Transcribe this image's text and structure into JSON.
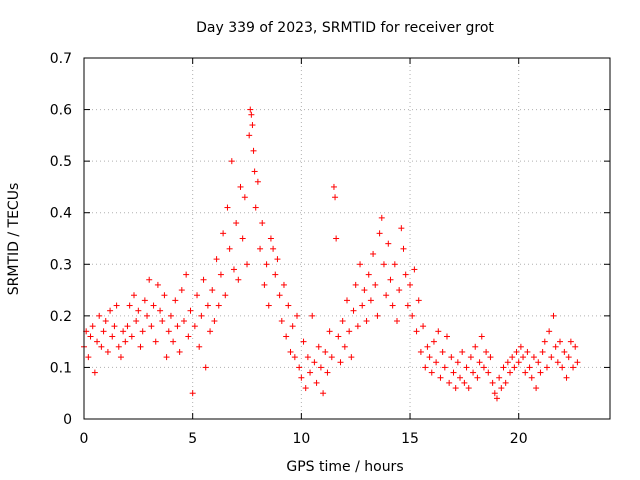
{
  "chart_data": {
    "type": "scatter",
    "title": "Day 339 of 2023, SRMTID for receiver grot",
    "xlabel": "GPS time / hours",
    "ylabel": "SRMTID / TECUs",
    "xlim": [
      0,
      24.2
    ],
    "ylim": [
      0,
      0.7
    ],
    "xticks": [
      0,
      5,
      10,
      15,
      20
    ],
    "yticks": [
      0,
      0.1,
      0.2,
      0.3,
      0.4,
      0.5,
      0.6,
      0.7
    ],
    "grid": true,
    "marker": "+",
    "color": "#ff0000",
    "series": [
      {
        "name": "SRMTID",
        "points": [
          [
            0.0,
            0.14
          ],
          [
            0.1,
            0.17
          ],
          [
            0.2,
            0.12
          ],
          [
            0.3,
            0.16
          ],
          [
            0.4,
            0.18
          ],
          [
            0.5,
            0.09
          ],
          [
            0.6,
            0.15
          ],
          [
            0.7,
            0.2
          ],
          [
            0.8,
            0.14
          ],
          [
            0.9,
            0.17
          ],
          [
            1.0,
            0.19
          ],
          [
            1.1,
            0.13
          ],
          [
            1.2,
            0.21
          ],
          [
            1.3,
            0.16
          ],
          [
            1.4,
            0.18
          ],
          [
            1.5,
            0.22
          ],
          [
            1.6,
            0.14
          ],
          [
            1.7,
            0.12
          ],
          [
            1.8,
            0.17
          ],
          [
            1.9,
            0.15
          ],
          [
            2.0,
            0.18
          ],
          [
            2.1,
            0.22
          ],
          [
            2.2,
            0.16
          ],
          [
            2.3,
            0.24
          ],
          [
            2.4,
            0.19
          ],
          [
            2.5,
            0.21
          ],
          [
            2.6,
            0.14
          ],
          [
            2.7,
            0.17
          ],
          [
            2.8,
            0.23
          ],
          [
            2.9,
            0.2
          ],
          [
            3.0,
            0.27
          ],
          [
            3.1,
            0.18
          ],
          [
            3.2,
            0.22
          ],
          [
            3.3,
            0.15
          ],
          [
            3.4,
            0.26
          ],
          [
            3.5,
            0.21
          ],
          [
            3.6,
            0.19
          ],
          [
            3.7,
            0.24
          ],
          [
            3.8,
            0.12
          ],
          [
            3.9,
            0.17
          ],
          [
            4.0,
            0.2
          ],
          [
            4.1,
            0.15
          ],
          [
            4.2,
            0.23
          ],
          [
            4.3,
            0.18
          ],
          [
            4.4,
            0.13
          ],
          [
            4.5,
            0.25
          ],
          [
            4.6,
            0.19
          ],
          [
            4.7,
            0.28
          ],
          [
            4.8,
            0.16
          ],
          [
            4.9,
            0.21
          ],
          [
            5.0,
            0.05
          ],
          [
            5.1,
            0.18
          ],
          [
            5.2,
            0.24
          ],
          [
            5.3,
            0.14
          ],
          [
            5.4,
            0.2
          ],
          [
            5.5,
            0.27
          ],
          [
            5.6,
            0.1
          ],
          [
            5.7,
            0.22
          ],
          [
            5.8,
            0.17
          ],
          [
            5.9,
            0.25
          ],
          [
            6.0,
            0.19
          ],
          [
            6.1,
            0.31
          ],
          [
            6.2,
            0.22
          ],
          [
            6.3,
            0.28
          ],
          [
            6.4,
            0.36
          ],
          [
            6.5,
            0.24
          ],
          [
            6.6,
            0.41
          ],
          [
            6.7,
            0.33
          ],
          [
            6.8,
            0.5
          ],
          [
            6.9,
            0.29
          ],
          [
            7.0,
            0.38
          ],
          [
            7.1,
            0.27
          ],
          [
            7.2,
            0.45
          ],
          [
            7.3,
            0.35
          ],
          [
            7.4,
            0.43
          ],
          [
            7.5,
            0.3
          ],
          [
            7.6,
            0.55
          ],
          [
            7.65,
            0.6
          ],
          [
            7.7,
            0.59
          ],
          [
            7.75,
            0.57
          ],
          [
            7.8,
            0.52
          ],
          [
            7.85,
            0.48
          ],
          [
            7.9,
            0.41
          ],
          [
            8.0,
            0.46
          ],
          [
            8.1,
            0.33
          ],
          [
            8.2,
            0.38
          ],
          [
            8.3,
            0.26
          ],
          [
            8.4,
            0.3
          ],
          [
            8.5,
            0.22
          ],
          [
            8.6,
            0.35
          ],
          [
            8.7,
            0.33
          ],
          [
            8.8,
            0.28
          ],
          [
            8.9,
            0.31
          ],
          [
            9.0,
            0.24
          ],
          [
            9.1,
            0.19
          ],
          [
            9.2,
            0.26
          ],
          [
            9.3,
            0.16
          ],
          [
            9.4,
            0.22
          ],
          [
            9.5,
            0.13
          ],
          [
            9.6,
            0.18
          ],
          [
            9.7,
            0.12
          ],
          [
            9.8,
            0.2
          ],
          [
            9.9,
            0.1
          ],
          [
            10.0,
            0.08
          ],
          [
            10.1,
            0.15
          ],
          [
            10.2,
            0.06
          ],
          [
            10.3,
            0.12
          ],
          [
            10.4,
            0.09
          ],
          [
            10.5,
            0.2
          ],
          [
            10.6,
            0.11
          ],
          [
            10.7,
            0.07
          ],
          [
            10.8,
            0.14
          ],
          [
            10.9,
            0.1
          ],
          [
            11.0,
            0.05
          ],
          [
            11.1,
            0.13
          ],
          [
            11.2,
            0.09
          ],
          [
            11.3,
            0.17
          ],
          [
            11.4,
            0.12
          ],
          [
            11.5,
            0.45
          ],
          [
            11.55,
            0.43
          ],
          [
            11.6,
            0.35
          ],
          [
            11.7,
            0.16
          ],
          [
            11.8,
            0.11
          ],
          [
            11.9,
            0.19
          ],
          [
            12.0,
            0.14
          ],
          [
            12.1,
            0.23
          ],
          [
            12.2,
            0.17
          ],
          [
            12.3,
            0.12
          ],
          [
            12.4,
            0.21
          ],
          [
            12.5,
            0.26
          ],
          [
            12.6,
            0.18
          ],
          [
            12.7,
            0.3
          ],
          [
            12.8,
            0.22
          ],
          [
            12.9,
            0.25
          ],
          [
            13.0,
            0.19
          ],
          [
            13.1,
            0.28
          ],
          [
            13.2,
            0.23
          ],
          [
            13.3,
            0.32
          ],
          [
            13.4,
            0.26
          ],
          [
            13.5,
            0.2
          ],
          [
            13.6,
            0.36
          ],
          [
            13.7,
            0.39
          ],
          [
            13.8,
            0.3
          ],
          [
            13.9,
            0.24
          ],
          [
            14.0,
            0.34
          ],
          [
            14.1,
            0.27
          ],
          [
            14.2,
            0.22
          ],
          [
            14.3,
            0.3
          ],
          [
            14.4,
            0.19
          ],
          [
            14.5,
            0.25
          ],
          [
            14.6,
            0.37
          ],
          [
            14.7,
            0.33
          ],
          [
            14.8,
            0.28
          ],
          [
            14.9,
            0.22
          ],
          [
            15.0,
            0.26
          ],
          [
            15.1,
            0.2
          ],
          [
            15.2,
            0.29
          ],
          [
            15.3,
            0.17
          ],
          [
            15.4,
            0.23
          ],
          [
            15.5,
            0.13
          ],
          [
            15.6,
            0.18
          ],
          [
            15.7,
            0.1
          ],
          [
            15.8,
            0.14
          ],
          [
            15.9,
            0.12
          ],
          [
            16.0,
            0.09
          ],
          [
            16.1,
            0.15
          ],
          [
            16.2,
            0.11
          ],
          [
            16.3,
            0.17
          ],
          [
            16.4,
            0.08
          ],
          [
            16.5,
            0.13
          ],
          [
            16.6,
            0.1
          ],
          [
            16.7,
            0.16
          ],
          [
            16.8,
            0.07
          ],
          [
            16.9,
            0.12
          ],
          [
            17.0,
            0.09
          ],
          [
            17.1,
            0.06
          ],
          [
            17.2,
            0.11
          ],
          [
            17.3,
            0.08
          ],
          [
            17.4,
            0.13
          ],
          [
            17.5,
            0.07
          ],
          [
            17.6,
            0.1
          ],
          [
            17.7,
            0.06
          ],
          [
            17.8,
            0.12
          ],
          [
            17.9,
            0.09
          ],
          [
            18.0,
            0.14
          ],
          [
            18.1,
            0.08
          ],
          [
            18.2,
            0.11
          ],
          [
            18.3,
            0.16
          ],
          [
            18.4,
            0.1
          ],
          [
            18.5,
            0.13
          ],
          [
            18.6,
            0.09
          ],
          [
            18.7,
            0.12
          ],
          [
            18.8,
            0.07
          ],
          [
            18.9,
            0.05
          ],
          [
            19.0,
            0.04
          ],
          [
            19.1,
            0.08
          ],
          [
            19.2,
            0.06
          ],
          [
            19.3,
            0.1
          ],
          [
            19.4,
            0.07
          ],
          [
            19.5,
            0.11
          ],
          [
            19.6,
            0.09
          ],
          [
            19.7,
            0.12
          ],
          [
            19.8,
            0.1
          ],
          [
            19.9,
            0.13
          ],
          [
            20.0,
            0.11
          ],
          [
            20.1,
            0.14
          ],
          [
            20.2,
            0.12
          ],
          [
            20.3,
            0.09
          ],
          [
            20.4,
            0.13
          ],
          [
            20.5,
            0.1
          ],
          [
            20.6,
            0.08
          ],
          [
            20.7,
            0.12
          ],
          [
            20.8,
            0.06
          ],
          [
            20.9,
            0.11
          ],
          [
            21.0,
            0.09
          ],
          [
            21.1,
            0.13
          ],
          [
            21.2,
            0.15
          ],
          [
            21.3,
            0.1
          ],
          [
            21.4,
            0.17
          ],
          [
            21.5,
            0.12
          ],
          [
            21.6,
            0.2
          ],
          [
            21.7,
            0.14
          ],
          [
            21.8,
            0.11
          ],
          [
            21.9,
            0.15
          ],
          [
            22.0,
            0.1
          ],
          [
            22.1,
            0.13
          ],
          [
            22.2,
            0.08
          ],
          [
            22.3,
            0.12
          ],
          [
            22.4,
            0.15
          ],
          [
            22.5,
            0.1
          ],
          [
            22.6,
            0.14
          ],
          [
            22.7,
            0.11
          ]
        ]
      }
    ]
  }
}
